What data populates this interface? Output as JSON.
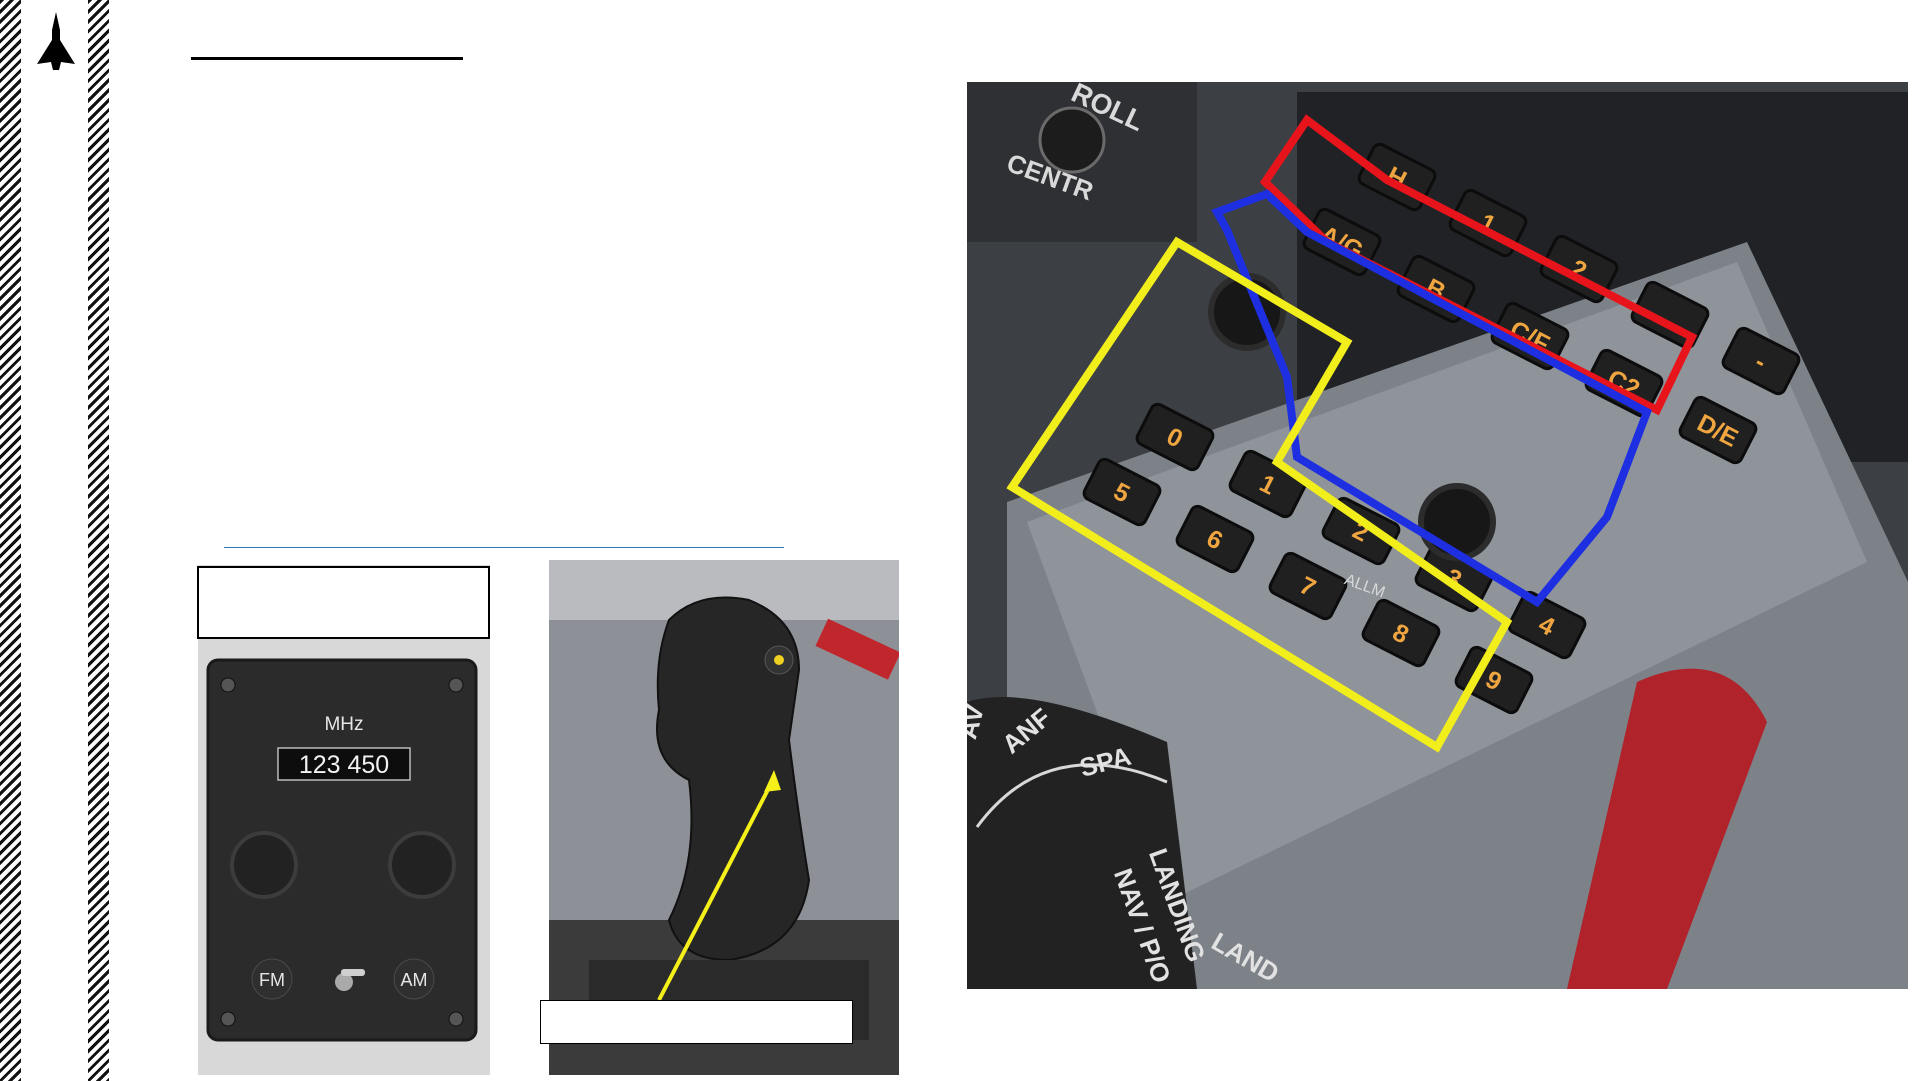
{
  "radio_panel": {
    "freq_unit": "MHz",
    "frequency": "123 450",
    "mode_left": "FM",
    "mode_right": "AM"
  },
  "console_panel": {
    "roll_label": "ROLL",
    "centr_label": "CENTR",
    "top_row": [
      "H",
      "1",
      "2",
      "",
      "-"
    ],
    "middle_row": [
      "A/G",
      "B",
      "C/F",
      "C2",
      "D/E"
    ],
    "keypad_row1": [
      "0",
      "1",
      "2",
      "3",
      "4"
    ],
    "keypad_row2": [
      "5",
      "6",
      "7",
      "8",
      "9"
    ],
    "selector_labels": [
      "AV",
      "ANF",
      "SPA",
      "NAV / P/O",
      "LANDING"
    ],
    "land_label": "LAND",
    "display_text": "ALLM"
  },
  "highlight_colors": {
    "red": "#e8141c",
    "blue": "#1d2fe0",
    "yellow": "#f2ee1c",
    "arrow": "#f5ef1a"
  }
}
